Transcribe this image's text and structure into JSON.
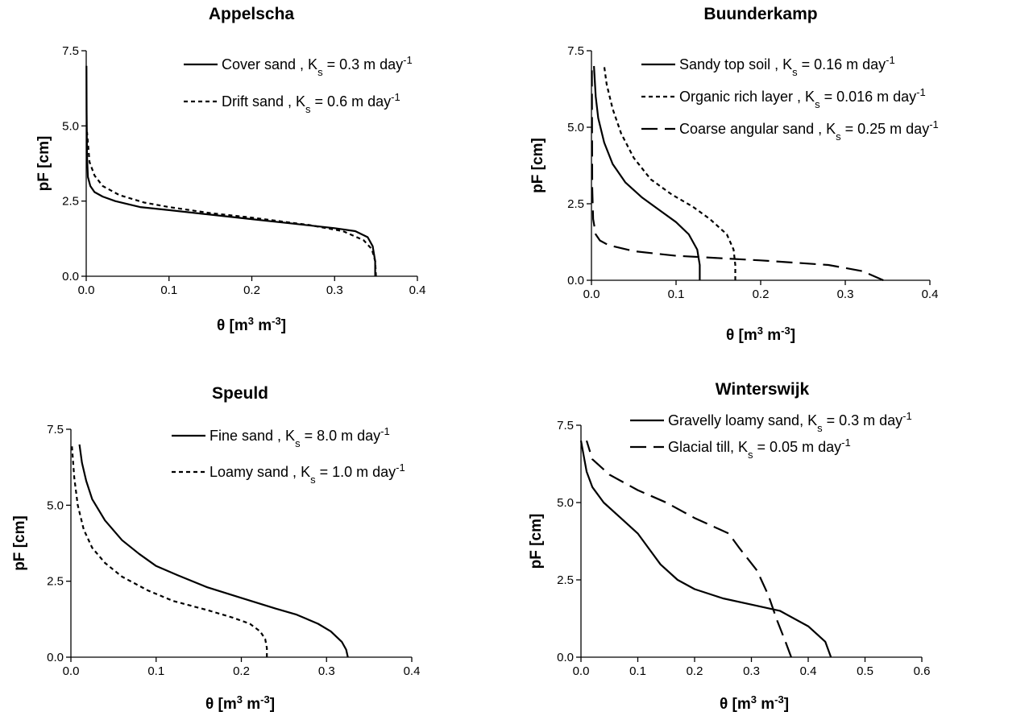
{
  "chart_data": [
    {
      "type": "line",
      "title": "Appelscha",
      "xlabel": "θ [m3 m-3]",
      "ylabel": "pF [cm]",
      "xlim": [
        0,
        0.4
      ],
      "ylim": [
        0,
        7.5
      ],
      "xticks": [
        "0.0",
        "0.1",
        "0.2",
        "0.3",
        "0.4"
      ],
      "yticks": [
        "0.0",
        "2.5",
        "5.0",
        "7.5"
      ],
      "legend_position": "top-right",
      "series": [
        {
          "name": "Cover sand , Ks = 0.3 m day-1",
          "style": "solid",
          "x": [
            0.349,
            0.349,
            0.346,
            0.34,
            0.325,
            0.3,
            0.25,
            0.2,
            0.15,
            0.1,
            0.065,
            0.035,
            0.02,
            0.01,
            0.005,
            0.002,
            0.001,
            0.0005,
            0.0003
          ],
          "y": [
            0.0,
            0.5,
            1.0,
            1.3,
            1.5,
            1.6,
            1.75,
            1.9,
            2.05,
            2.2,
            2.3,
            2.5,
            2.65,
            2.8,
            3.0,
            3.3,
            4.0,
            5.5,
            7.0
          ]
        },
        {
          "name": "Drift sand , Ks = 0.6 m day-1",
          "style": "dotted",
          "x": [
            0.35,
            0.349,
            0.345,
            0.335,
            0.31,
            0.27,
            0.2,
            0.15,
            0.1,
            0.07,
            0.04,
            0.02,
            0.01,
            0.004,
            0.001
          ],
          "y": [
            0.0,
            0.5,
            0.9,
            1.2,
            1.5,
            1.7,
            1.95,
            2.1,
            2.3,
            2.45,
            2.7,
            3.0,
            3.35,
            3.8,
            4.8
          ]
        }
      ]
    },
    {
      "type": "line",
      "title": "Buunderkamp",
      "xlabel": "θ [m3 m-3]",
      "ylabel": "pF [cm]",
      "xlim": [
        0,
        0.4
      ],
      "ylim": [
        0,
        7.5
      ],
      "xticks": [
        "0.0",
        "0.1",
        "0.2",
        "0.3",
        "0.4"
      ],
      "yticks": [
        "0.0",
        "2.5",
        "5.0",
        "7.5"
      ],
      "legend_position": "top-right",
      "series": [
        {
          "name": "Sandy top soil , Ks = 0.16 m day-1",
          "style": "solid",
          "x": [
            0.128,
            0.128,
            0.125,
            0.115,
            0.1,
            0.08,
            0.06,
            0.04,
            0.025,
            0.015,
            0.008,
            0.005,
            0.003
          ],
          "y": [
            0.0,
            0.5,
            1.0,
            1.5,
            1.9,
            2.3,
            2.7,
            3.2,
            3.8,
            4.5,
            5.3,
            6.0,
            7.0
          ]
        },
        {
          "name": "Organic rich layer , Ks = 0.016 m day-1",
          "style": "dotted",
          "x": [
            0.17,
            0.17,
            0.168,
            0.16,
            0.14,
            0.12,
            0.095,
            0.07,
            0.05,
            0.035,
            0.025,
            0.018,
            0.015
          ],
          "y": [
            0.0,
            0.5,
            1.0,
            1.5,
            2.0,
            2.4,
            2.8,
            3.3,
            4.0,
            4.8,
            5.6,
            6.4,
            7.0
          ]
        },
        {
          "name": "Coarse angular sand , Ks = 0.25 m day-1",
          "style": "dashed",
          "x": [
            0.345,
            0.32,
            0.28,
            0.2,
            0.1,
            0.05,
            0.02,
            0.01,
            0.005,
            0.002,
            0.001,
            0.0005
          ],
          "y": [
            0.0,
            0.3,
            0.5,
            0.65,
            0.8,
            0.95,
            1.15,
            1.3,
            1.5,
            2.0,
            3.0,
            7.0
          ]
        }
      ]
    },
    {
      "type": "line",
      "title": "Speuld",
      "xlabel": "θ [m3 m-3]",
      "ylabel": "pF [cm]",
      "xlim": [
        0,
        0.4
      ],
      "ylim": [
        0,
        7.5
      ],
      "xticks": [
        "0.0",
        "0.1",
        "0.2",
        "0.3",
        "0.4"
      ],
      "yticks": [
        "0.0",
        "2.5",
        "5.0",
        "7.5"
      ],
      "legend_position": "top-right",
      "series": [
        {
          "name": "Fine sand , Ks = 8.0 m day-1",
          "style": "solid",
          "x": [
            0.325,
            0.323,
            0.318,
            0.305,
            0.29,
            0.265,
            0.24,
            0.2,
            0.16,
            0.125,
            0.1,
            0.08,
            0.06,
            0.04,
            0.025,
            0.018,
            0.013,
            0.01
          ],
          "y": [
            0.0,
            0.25,
            0.5,
            0.85,
            1.1,
            1.4,
            1.6,
            1.95,
            2.3,
            2.7,
            3.0,
            3.4,
            3.85,
            4.5,
            5.2,
            5.8,
            6.4,
            7.0
          ]
        },
        {
          "name": "Loamy sand , Ks = 1.0 m day-1",
          "style": "dotted",
          "x": [
            0.23,
            0.23,
            0.228,
            0.222,
            0.21,
            0.19,
            0.16,
            0.12,
            0.09,
            0.06,
            0.04,
            0.025,
            0.015,
            0.008,
            0.004,
            0.001
          ],
          "y": [
            0.0,
            0.3,
            0.6,
            0.85,
            1.1,
            1.3,
            1.55,
            1.85,
            2.2,
            2.65,
            3.1,
            3.6,
            4.2,
            5.0,
            5.9,
            7.0
          ]
        }
      ]
    },
    {
      "type": "line",
      "title": "Winterswijk",
      "xlabel": "θ [m3 m-3]",
      "ylabel": "pF [cm]",
      "xlim": [
        0,
        0.6
      ],
      "ylim": [
        0,
        7.5
      ],
      "xticks": [
        "0.0",
        "0.1",
        "0.2",
        "0.3",
        "0.4",
        "0.5",
        "0.6"
      ],
      "yticks": [
        "0.0",
        "2.5",
        "5.0",
        "7.5"
      ],
      "legend_position": "top",
      "series": [
        {
          "name": "Gravelly loamy sand, Ks = 0.3 m day-1",
          "style": "solid",
          "x": [
            0.44,
            0.43,
            0.4,
            0.35,
            0.3,
            0.25,
            0.2,
            0.17,
            0.14,
            0.12,
            0.1,
            0.07,
            0.04,
            0.02,
            0.01,
            0.005,
            0.0
          ],
          "y": [
            0.0,
            0.5,
            1.0,
            1.5,
            1.7,
            1.9,
            2.2,
            2.5,
            3.0,
            3.5,
            4.0,
            4.5,
            5.0,
            5.5,
            6.0,
            6.5,
            7.0
          ]
        },
        {
          "name": "Glacial till, Ks = 0.05 m day-1",
          "style": "dashed",
          "x": [
            0.37,
            0.36,
            0.345,
            0.33,
            0.31,
            0.28,
            0.26,
            0.2,
            0.15,
            0.1,
            0.05,
            0.02,
            0.01
          ],
          "y": [
            0.0,
            0.5,
            1.2,
            2.0,
            2.8,
            3.5,
            4.0,
            4.5,
            5.0,
            5.4,
            5.9,
            6.4,
            7.0
          ]
        }
      ]
    }
  ]
}
